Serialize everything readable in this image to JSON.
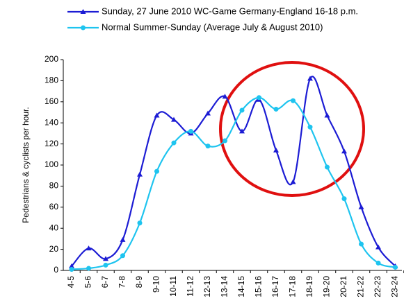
{
  "chart_data": {
    "type": "line",
    "y_label": "Pedestrians & cyclists per hour.",
    "categories": [
      "4-5",
      "5-6",
      "6-7",
      "7-8",
      "8-9",
      "9-10",
      "10-11",
      "11-12",
      "12-13",
      "13-14",
      "14-15",
      "15-16",
      "16-17",
      "17-18",
      "18-19",
      "19-20",
      "20-21",
      "21-22",
      "22-23",
      "23-24"
    ],
    "series": [
      {
        "name": "Sunday, 27 June 2010 WC-Game Germany-England 16-18 p.m.",
        "color": "#1c1cd4",
        "marker": "triangle",
        "values": [
          4,
          21,
          11,
          29,
          91,
          147,
          143,
          130,
          149,
          165,
          132,
          162,
          114,
          84,
          182,
          147,
          113,
          60,
          22,
          4
        ]
      },
      {
        "name": "Normal Summer-Sunday (Average July & August 2010)",
        "color": "#1ec4ef",
        "marker": "circle",
        "values": [
          1,
          2,
          5,
          14,
          45,
          94,
          121,
          132,
          118,
          123,
          152,
          164,
          153,
          161,
          136,
          98,
          68,
          25,
          7,
          3
        ]
      }
    ],
    "ylim": [
      0,
      200
    ],
    "yticks": [
      0,
      20,
      40,
      60,
      80,
      100,
      120,
      140,
      160,
      180,
      200
    ],
    "grid": false
  }
}
